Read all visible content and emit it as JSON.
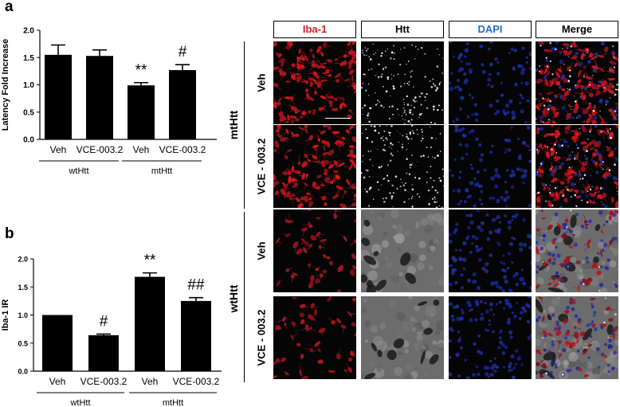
{
  "panel_a": {
    "letter": "a"
  },
  "panel_b": {
    "letter": "b"
  },
  "chart_data": [
    {
      "type": "bar",
      "ylabel": "Latency Fold Increase",
      "ylim": [
        0,
        2.0
      ],
      "yticks": [
        "0.0",
        "0.5",
        "1.0",
        "1.5",
        "2.0"
      ],
      "categories": [
        "Veh",
        "VCE-003.2",
        "Veh",
        "VCE-003.2"
      ],
      "groups": [
        {
          "label": "wtHtt",
          "span": [
            0,
            1
          ]
        },
        {
          "label": "mtHtt",
          "span": [
            2,
            3
          ]
        }
      ],
      "values": [
        1.55,
        1.53,
        0.99,
        1.27
      ],
      "errors": [
        0.18,
        0.11,
        0.05,
        0.1
      ],
      "significance": [
        "",
        "",
        "**",
        "#"
      ],
      "bar_color": "#000000"
    },
    {
      "type": "bar",
      "ylabel": "Iba-1 IR",
      "ylim": [
        0,
        2.0
      ],
      "yticks": [
        "0.0",
        "0.5",
        "1.0",
        "1.5",
        "2.0"
      ],
      "categories": [
        "Veh",
        "VCE-003.2",
        "Veh",
        "VCE-003.2"
      ],
      "groups": [
        {
          "label": "wtHtt",
          "span": [
            0,
            1
          ]
        },
        {
          "label": "mtHtt",
          "span": [
            2,
            3
          ]
        }
      ],
      "values": [
        1.0,
        0.64,
        1.68,
        1.25
      ],
      "errors": [
        0.0,
        0.02,
        0.07,
        0.06
      ],
      "significance": [
        "",
        "#",
        "**",
        "##"
      ],
      "bar_color": "#000000"
    }
  ],
  "micrographs": {
    "columns": [
      {
        "label": "Iba-1",
        "color": "#d21e2b"
      },
      {
        "label": "Htt",
        "color": "#000000"
      },
      {
        "label": "DAPI",
        "color": "#1f6fc7"
      },
      {
        "label": "Merge",
        "color": "#000000"
      }
    ],
    "groups": [
      {
        "label": "mtHtt",
        "rows": [
          {
            "label": "Veh"
          },
          {
            "label": "VCE - 003.2"
          }
        ]
      },
      {
        "label": "wtHtt",
        "rows": [
          {
            "label": "Veh"
          },
          {
            "label": "VCE - 003.2"
          }
        ]
      }
    ]
  }
}
